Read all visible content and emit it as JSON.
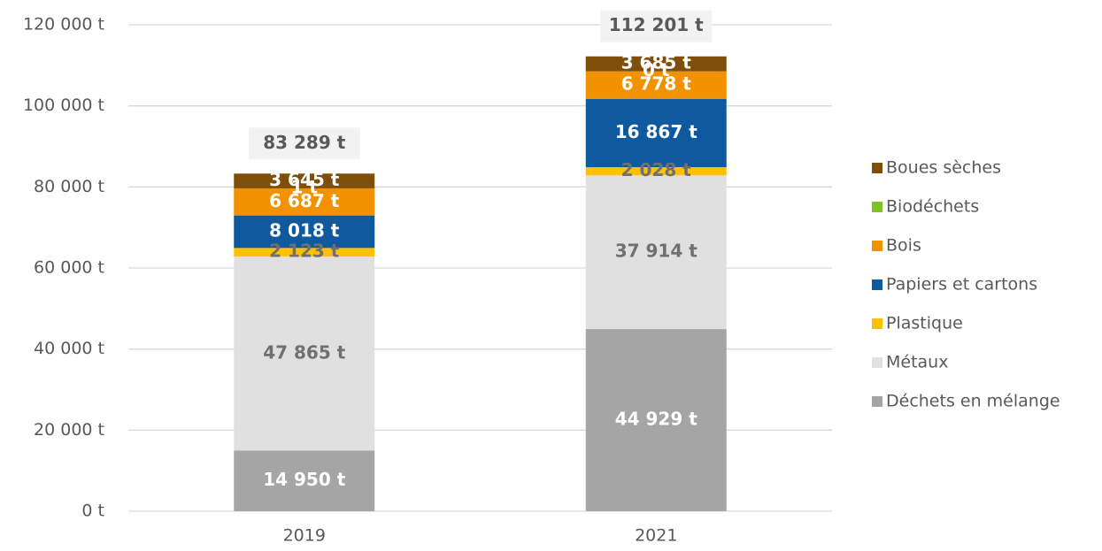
{
  "chart_data": {
    "type": "stacked_bar",
    "categories": [
      "2019",
      "2021"
    ],
    "series": [
      {
        "name": "Déchets en mélange",
        "color": "#a5a5a5",
        "label_color": "#ffffff",
        "values": [
          14950,
          44929
        ],
        "value_labels": [
          "14 950 t",
          "44 929 t"
        ]
      },
      {
        "name": "Métaux",
        "color": "#e0e0e0",
        "label_color": "#707070",
        "values": [
          47865,
          37914
        ],
        "value_labels": [
          "47 865 t",
          "37 914 t"
        ]
      },
      {
        "name": "Plastique",
        "color": "#ffc000",
        "label_color": "#707070",
        "values": [
          2123,
          2028
        ],
        "value_labels": [
          "2 123 t",
          "2 028 t"
        ]
      },
      {
        "name": "Papiers et cartons",
        "color": "#0f5a9f",
        "label_color": "#ffffff",
        "values": [
          8018,
          16867
        ],
        "value_labels": [
          "8 018 t",
          "16 867 t"
        ]
      },
      {
        "name": "Bois",
        "color": "#f39200",
        "label_color": "#ffffff",
        "values": [
          6687,
          6778
        ],
        "value_labels": [
          "6 687 t",
          "6 778 t"
        ]
      },
      {
        "name": "Biodéchets",
        "color": "#7ec225",
        "label_color": "#ffffff",
        "values": [
          1,
          0
        ],
        "value_labels": [
          "1 t",
          "0 t"
        ]
      },
      {
        "name": "Boues sèches",
        "color": "#7f4f0a",
        "label_color": "#ffffff",
        "values": [
          3645,
          3685
        ],
        "value_labels": [
          "3 645 t",
          "3 685 t"
        ]
      }
    ],
    "totals": [
      83289,
      112201
    ],
    "total_labels": [
      "83 289 t",
      "112 201 t"
    ],
    "ylim": [
      0,
      120000
    ],
    "yticks": [
      {
        "value": 0,
        "label": "0 t"
      },
      {
        "value": 20000,
        "label": "20 000 t"
      },
      {
        "value": 40000,
        "label": "40 000 t"
      },
      {
        "value": 60000,
        "label": "60 000 t"
      },
      {
        "value": 80000,
        "label": "80 000 t"
      },
      {
        "value": 100000,
        "label": "100 000 t"
      },
      {
        "value": 120000,
        "label": "120 000 t"
      }
    ],
    "grid": true,
    "legend": "right"
  }
}
